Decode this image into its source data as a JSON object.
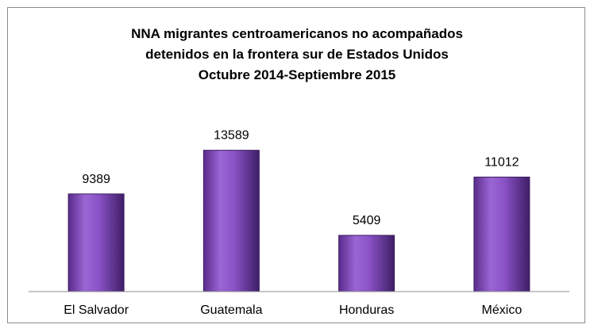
{
  "chart_data": {
    "type": "bar",
    "title": [
      "NNA migrantes centroamericanos no acompañados",
      "detenidos en la frontera sur de Estados Unidos",
      "Octubre 2014-Septiembre 2015"
    ],
    "categories": [
      "El Salvador",
      "Guatemala",
      "Honduras",
      "México"
    ],
    "values": [
      9389,
      13589,
      5409,
      11012
    ],
    "value_labels": [
      "9389",
      "13589",
      "5409",
      "11012"
    ],
    "xlabel": "",
    "ylabel": "",
    "ylim": [
      0,
      16000
    ],
    "grid": false,
    "legend": "none",
    "colors": {
      "bar_top": "#b183e0",
      "bar_mid": "#8a52c6",
      "bar_bottom": "#4b2478",
      "bar_edge": "#3b1d60",
      "axis": "#8c8c8c"
    }
  }
}
